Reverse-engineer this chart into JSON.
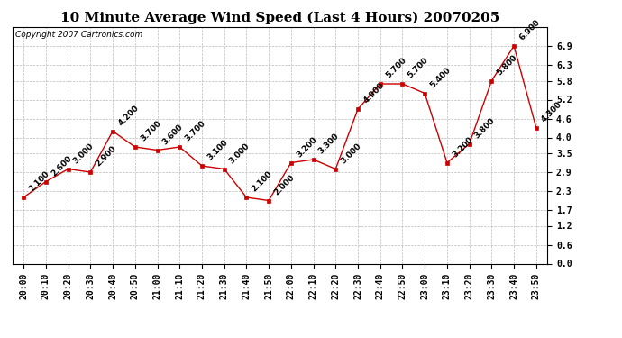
{
  "title": "10 Minute Average Wind Speed (Last 4 Hours) 20070205",
  "copyright": "Copyright 2007 Cartronics.com",
  "x_labels": [
    "20:00",
    "20:10",
    "20:20",
    "20:30",
    "20:40",
    "20:50",
    "21:00",
    "21:10",
    "21:20",
    "21:30",
    "21:40",
    "21:50",
    "22:00",
    "22:10",
    "22:20",
    "22:30",
    "22:40",
    "22:50",
    "23:00",
    "23:10",
    "23:20",
    "23:30",
    "23:40",
    "23:50"
  ],
  "y_values": [
    2.1,
    2.6,
    3.0,
    2.9,
    4.2,
    3.7,
    3.6,
    3.7,
    3.1,
    3.0,
    2.1,
    2.0,
    3.2,
    3.3,
    3.0,
    4.9,
    5.7,
    5.7,
    5.4,
    3.2,
    3.8,
    5.8,
    6.9,
    4.3
  ],
  "point_labels": [
    "2.100",
    "2.600",
    "3.000",
    "2.900",
    "4.200",
    "3.700",
    "3.600",
    "3.700",
    "3.100",
    "3.000",
    "2.100",
    "2.000",
    "3.200",
    "3.300",
    "3.000",
    "4.900",
    "5.700",
    "5.700",
    "5.400",
    "3.200",
    "3.800",
    "5.800",
    "6.900",
    "4.300"
  ],
  "line_color": "#cc0000",
  "marker_color": "#cc0000",
  "bg_color": "#ffffff",
  "grid_color": "#bbbbbb",
  "ylim": [
    0.0,
    7.5
  ],
  "yticks": [
    0.0,
    0.6,
    1.2,
    1.7,
    2.3,
    2.9,
    3.5,
    4.0,
    4.6,
    5.2,
    5.8,
    6.3,
    6.9
  ],
  "title_fontsize": 11,
  "label_fontsize": 7,
  "annotation_fontsize": 6.5,
  "copyright_fontsize": 6.5
}
